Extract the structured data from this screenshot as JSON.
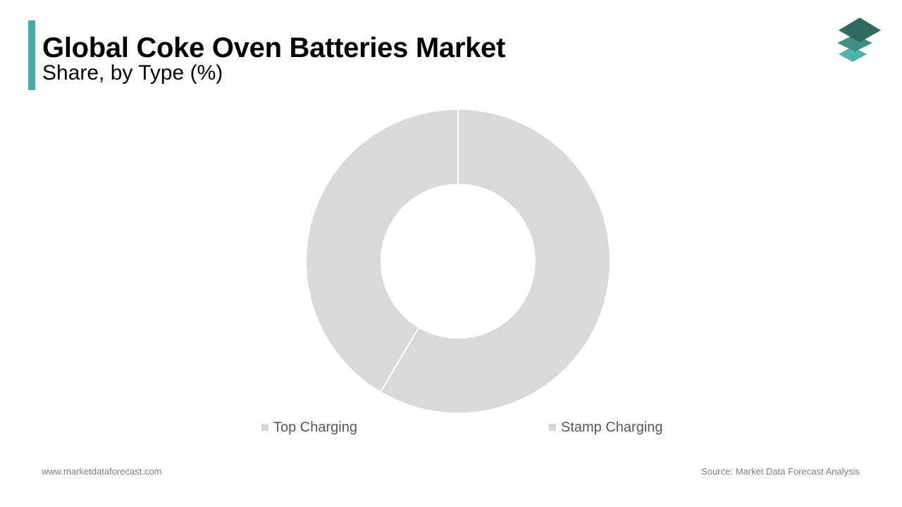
{
  "header": {
    "title": "Global Coke Oven Batteries Market",
    "subtitle": "Share, by Type (%)"
  },
  "colors": {
    "accent": "#4aa9a7",
    "slice_fill": "#d9d9d9",
    "slice_border": "#ffffff",
    "logo_dark": "#2f6b62",
    "logo_mid": "#3f8f86",
    "logo_light": "#4fb3ad"
  },
  "logo": {
    "icon": "stacked-layers-icon"
  },
  "chart_data": {
    "type": "pie",
    "style": "donut",
    "categories": [
      "Top Charging",
      "Stamp Charging"
    ],
    "values": [
      41.5,
      58.5
    ],
    "unit": "%",
    "title": "Global Coke Oven Batteries Market",
    "subtitle": "Share, by Type (%)",
    "legend_position": "bottom",
    "data_labels": false
  },
  "legend": {
    "items": [
      {
        "label": "Top Charging"
      },
      {
        "label": "Stamp Charging"
      }
    ]
  },
  "footer": {
    "website": "www.marketdataforecast.com",
    "source": "Source: Market Data Forecast Analysis"
  }
}
